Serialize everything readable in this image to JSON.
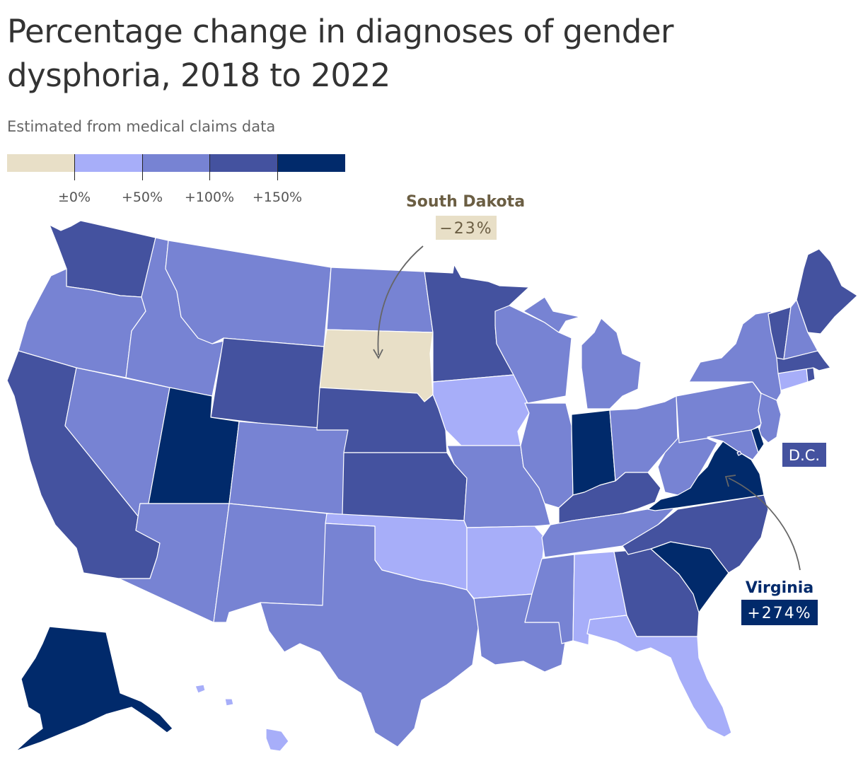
{
  "title": "Percentage change in diagnoses of gender dysphoria, 2018 to 2022",
  "subtitle": "Estimated from medical claims data",
  "legend": {
    "colors": [
      "#e8dfc7",
      "#a7aef9",
      "#7783d3",
      "#44529f",
      "#012a6b"
    ],
    "ticks": [
      "±0%",
      "+50%",
      "+100%",
      "+150%"
    ],
    "tick_values": [
      0,
      50,
      100,
      150
    ]
  },
  "callouts": {
    "south_dakota": {
      "name": "South Dakota",
      "value": "−23%"
    },
    "virginia": {
      "name": "Virginia",
      "value": "+274%"
    },
    "dc": {
      "name": "D.C."
    }
  },
  "bins": {
    "Alaska": 4,
    "Hawaii": 1,
    "Washington": 3,
    "Oregon": 2,
    "California": 3,
    "Nevada": 2,
    "Idaho": 2,
    "Montana": 2,
    "Wyoming": 3,
    "Utah": 4,
    "Arizona": 2,
    "Colorado": 2,
    "New Mexico": 2,
    "North Dakota": 2,
    "South Dakota": 0,
    "Nebraska": 3,
    "Kansas": 3,
    "Oklahoma": 1,
    "Texas": 2,
    "Minnesota": 3,
    "Iowa": 1,
    "Missouri": 2,
    "Arkansas": 1,
    "Louisiana": 2,
    "Wisconsin": 2,
    "Illinois": 2,
    "Michigan": 2,
    "Indiana": 4,
    "Ohio": 2,
    "Kentucky": 3,
    "Tennessee": 2,
    "Mississippi": 2,
    "Alabama": 1,
    "Georgia": 3,
    "Florida": 1,
    "South Carolina": 4,
    "North Carolina": 3,
    "Virginia": 4,
    "West Virginia": 2,
    "Pennsylvania": 2,
    "New York": 2,
    "Maryland": 2,
    "Delaware": 4,
    "New Jersey": 2,
    "Connecticut": 1,
    "Rhode Island": 3,
    "Massachusetts": 3,
    "Vermont": 3,
    "New Hampshire": 2,
    "Maine": 3,
    "District of Columbia": 3
  }
}
